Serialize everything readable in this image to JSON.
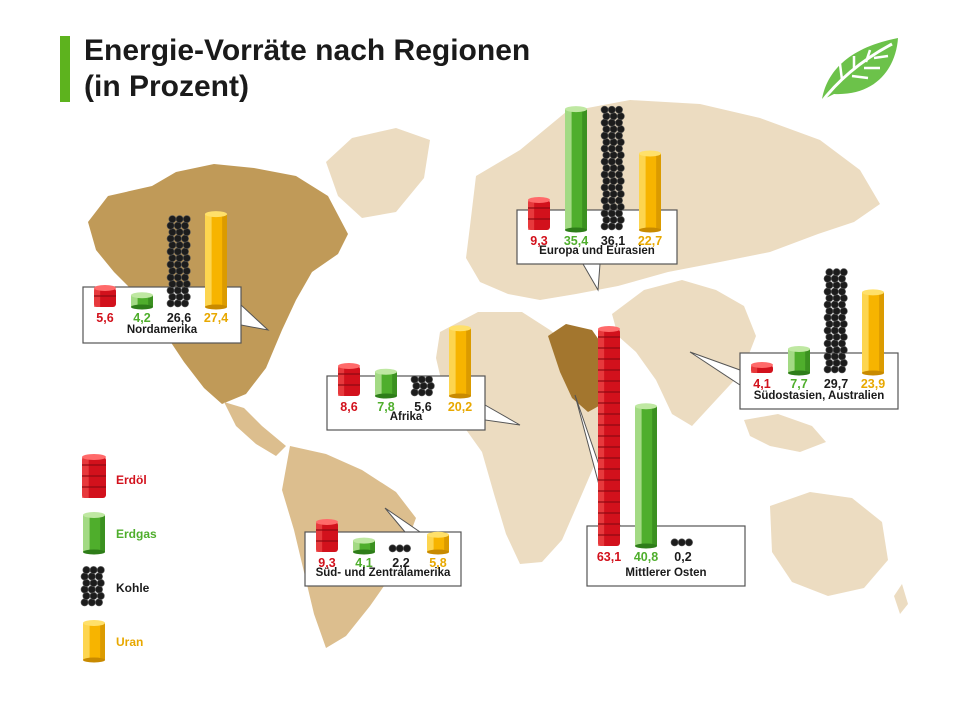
{
  "title_line1": "Energie-Vorräte nach Regionen",
  "title_line2": "(in Prozent)",
  "logo": "green-leaf-icon",
  "colors": {
    "erdoel": "#d2111c",
    "erdgas": "#4fae2c",
    "kohle": "#1c1c1c",
    "uran": "#f7b400",
    "map_light": "#ecdcc1",
    "map_mid": "#dcbe8e",
    "map_dark": "#c09a58",
    "map_darkest": "#a3762e"
  },
  "chart_data": {
    "type": "bar",
    "title": "Energie-Vorräte nach Regionen (in Prozent)",
    "legend": [
      {
        "key": "erdoel",
        "label": "Erdöl"
      },
      {
        "key": "erdgas",
        "label": "Erdgas"
      },
      {
        "key": "kohle",
        "label": "Kohle"
      },
      {
        "key": "uran",
        "label": "Uran"
      }
    ],
    "regions": [
      {
        "name": "Nordamerika",
        "values": {
          "erdoel": 5.6,
          "erdgas": 4.2,
          "kohle": 26.6,
          "uran": 27.4
        },
        "labels": {
          "erdoel": "5,6",
          "erdgas": "4,2",
          "kohle": "26,6",
          "uran": "27,4"
        }
      },
      {
        "name": "Europa und Eurasien",
        "values": {
          "erdoel": 9.3,
          "erdgas": 35.4,
          "kohle": 36.1,
          "uran": 22.7
        },
        "labels": {
          "erdoel": "9,3",
          "erdgas": "35,4",
          "kohle": "36,1",
          "uran": "22,7"
        }
      },
      {
        "name": "Afrika",
        "values": {
          "erdoel": 8.6,
          "erdgas": 7.8,
          "kohle": 5.6,
          "uran": 20.2
        },
        "labels": {
          "erdoel": "8,6",
          "erdgas": "7,8",
          "kohle": "5,6",
          "uran": "20,2"
        }
      },
      {
        "name": "Südostasien, Australien",
        "values": {
          "erdoel": 4.1,
          "erdgas": 7.7,
          "kohle": 29.7,
          "uran": 23.9
        },
        "labels": {
          "erdoel": "4,1",
          "erdgas": "7,7",
          "kohle": "29,7",
          "uran": "23,9"
        }
      },
      {
        "name": "Süd- und Zentralamerika",
        "values": {
          "erdoel": 9.3,
          "erdgas": 4.1,
          "kohle": 2.2,
          "uran": 5.8
        },
        "labels": {
          "erdoel": "9,3",
          "erdgas": "4,1",
          "kohle": "2,2",
          "uran": "5,8"
        }
      },
      {
        "name": "Mittlerer Osten",
        "values": {
          "erdoel": 63.1,
          "erdgas": 40.8,
          "kohle": 0.2
        },
        "labels": {
          "erdoel": "63,1",
          "erdgas": "40,8",
          "kohle": "0,2"
        }
      }
    ]
  }
}
